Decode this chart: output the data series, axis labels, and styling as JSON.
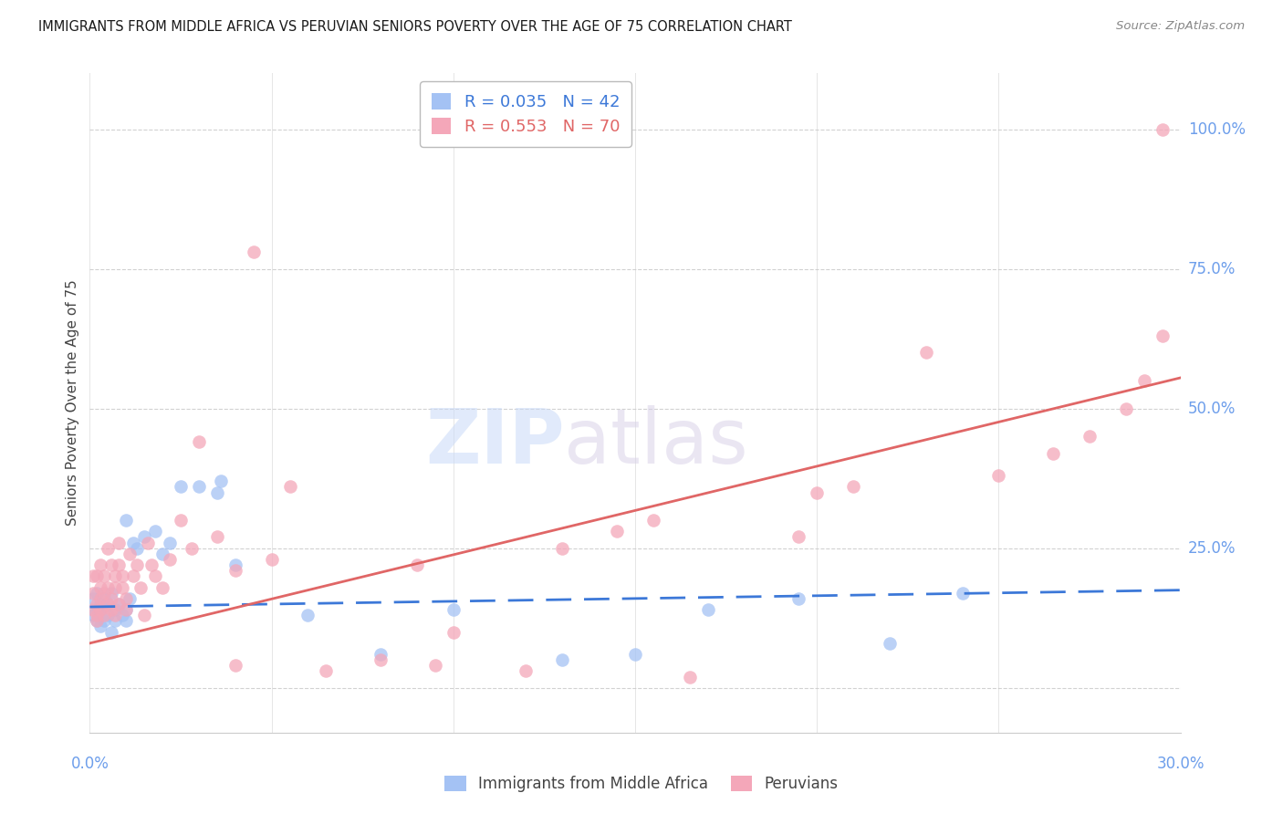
{
  "title": "IMMIGRANTS FROM MIDDLE AFRICA VS PERUVIAN SENIORS POVERTY OVER THE AGE OF 75 CORRELATION CHART",
  "source": "Source: ZipAtlas.com",
  "ylabel": "Seniors Poverty Over the Age of 75",
  "color_blue": "#a4c2f4",
  "color_pink": "#f4a7b9",
  "color_blue_line": "#3c78d8",
  "color_pink_line": "#e06666",
  "color_axis_labels": "#6d9eeb",
  "grid_color": "#cccccc",
  "background_color": "#ffffff",
  "legend1_label": "R = 0.035   N = 42",
  "legend2_label": "R = 0.553   N = 70",
  "ytick_values": [
    0.0,
    0.25,
    0.5,
    0.75,
    1.0
  ],
  "ytick_labels": [
    "0.0%",
    "25.0%",
    "50.0%",
    "75.0%",
    "100.0%"
  ],
  "xlim": [
    0.0,
    0.3
  ],
  "ylim": [
    -0.08,
    1.1
  ],
  "blue_line_x": [
    0.0,
    0.3
  ],
  "blue_line_y": [
    0.145,
    0.175
  ],
  "pink_line_x": [
    0.0,
    0.3
  ],
  "pink_line_y": [
    0.08,
    0.555
  ],
  "blue_x": [
    0.001,
    0.001,
    0.002,
    0.002,
    0.002,
    0.003,
    0.003,
    0.003,
    0.004,
    0.004,
    0.005,
    0.005,
    0.006,
    0.006,
    0.007,
    0.007,
    0.008,
    0.009,
    0.01,
    0.01,
    0.01,
    0.011,
    0.012,
    0.013,
    0.015,
    0.018,
    0.02,
    0.022,
    0.025,
    0.03,
    0.035,
    0.036,
    0.04,
    0.06,
    0.08,
    0.1,
    0.13,
    0.15,
    0.17,
    0.195,
    0.22,
    0.24
  ],
  "blue_y": [
    0.13,
    0.16,
    0.14,
    0.17,
    0.12,
    0.15,
    0.11,
    0.14,
    0.16,
    0.12,
    0.13,
    0.15,
    0.17,
    0.1,
    0.14,
    0.12,
    0.15,
    0.13,
    0.3,
    0.12,
    0.14,
    0.16,
    0.26,
    0.25,
    0.27,
    0.28,
    0.24,
    0.26,
    0.36,
    0.36,
    0.35,
    0.37,
    0.22,
    0.13,
    0.06,
    0.14,
    0.05,
    0.06,
    0.14,
    0.16,
    0.08,
    0.17
  ],
  "pink_x": [
    0.001,
    0.001,
    0.001,
    0.002,
    0.002,
    0.002,
    0.002,
    0.003,
    0.003,
    0.003,
    0.003,
    0.004,
    0.004,
    0.004,
    0.005,
    0.005,
    0.005,
    0.006,
    0.006,
    0.006,
    0.007,
    0.007,
    0.007,
    0.008,
    0.008,
    0.008,
    0.009,
    0.009,
    0.01,
    0.01,
    0.011,
    0.012,
    0.013,
    0.014,
    0.015,
    0.016,
    0.017,
    0.018,
    0.02,
    0.022,
    0.025,
    0.028,
    0.03,
    0.035,
    0.04,
    0.045,
    0.05,
    0.055,
    0.065,
    0.08,
    0.09,
    0.095,
    0.12,
    0.13,
    0.145,
    0.155,
    0.165,
    0.2,
    0.21,
    0.23,
    0.25,
    0.265,
    0.275,
    0.285,
    0.29,
    0.295,
    0.295,
    0.195,
    0.1,
    0.04
  ],
  "pink_y": [
    0.14,
    0.17,
    0.2,
    0.13,
    0.15,
    0.2,
    0.12,
    0.16,
    0.14,
    0.18,
    0.22,
    0.17,
    0.13,
    0.2,
    0.15,
    0.18,
    0.25,
    0.14,
    0.22,
    0.16,
    0.2,
    0.13,
    0.18,
    0.22,
    0.15,
    0.26,
    0.18,
    0.2,
    0.16,
    0.14,
    0.24,
    0.2,
    0.22,
    0.18,
    0.13,
    0.26,
    0.22,
    0.2,
    0.18,
    0.23,
    0.3,
    0.25,
    0.44,
    0.27,
    0.21,
    0.78,
    0.23,
    0.36,
    0.03,
    0.05,
    0.22,
    0.04,
    0.03,
    0.25,
    0.28,
    0.3,
    0.02,
    0.35,
    0.36,
    0.6,
    0.38,
    0.42,
    0.45,
    0.5,
    0.55,
    1.0,
    0.63,
    0.27,
    0.1,
    0.04
  ]
}
